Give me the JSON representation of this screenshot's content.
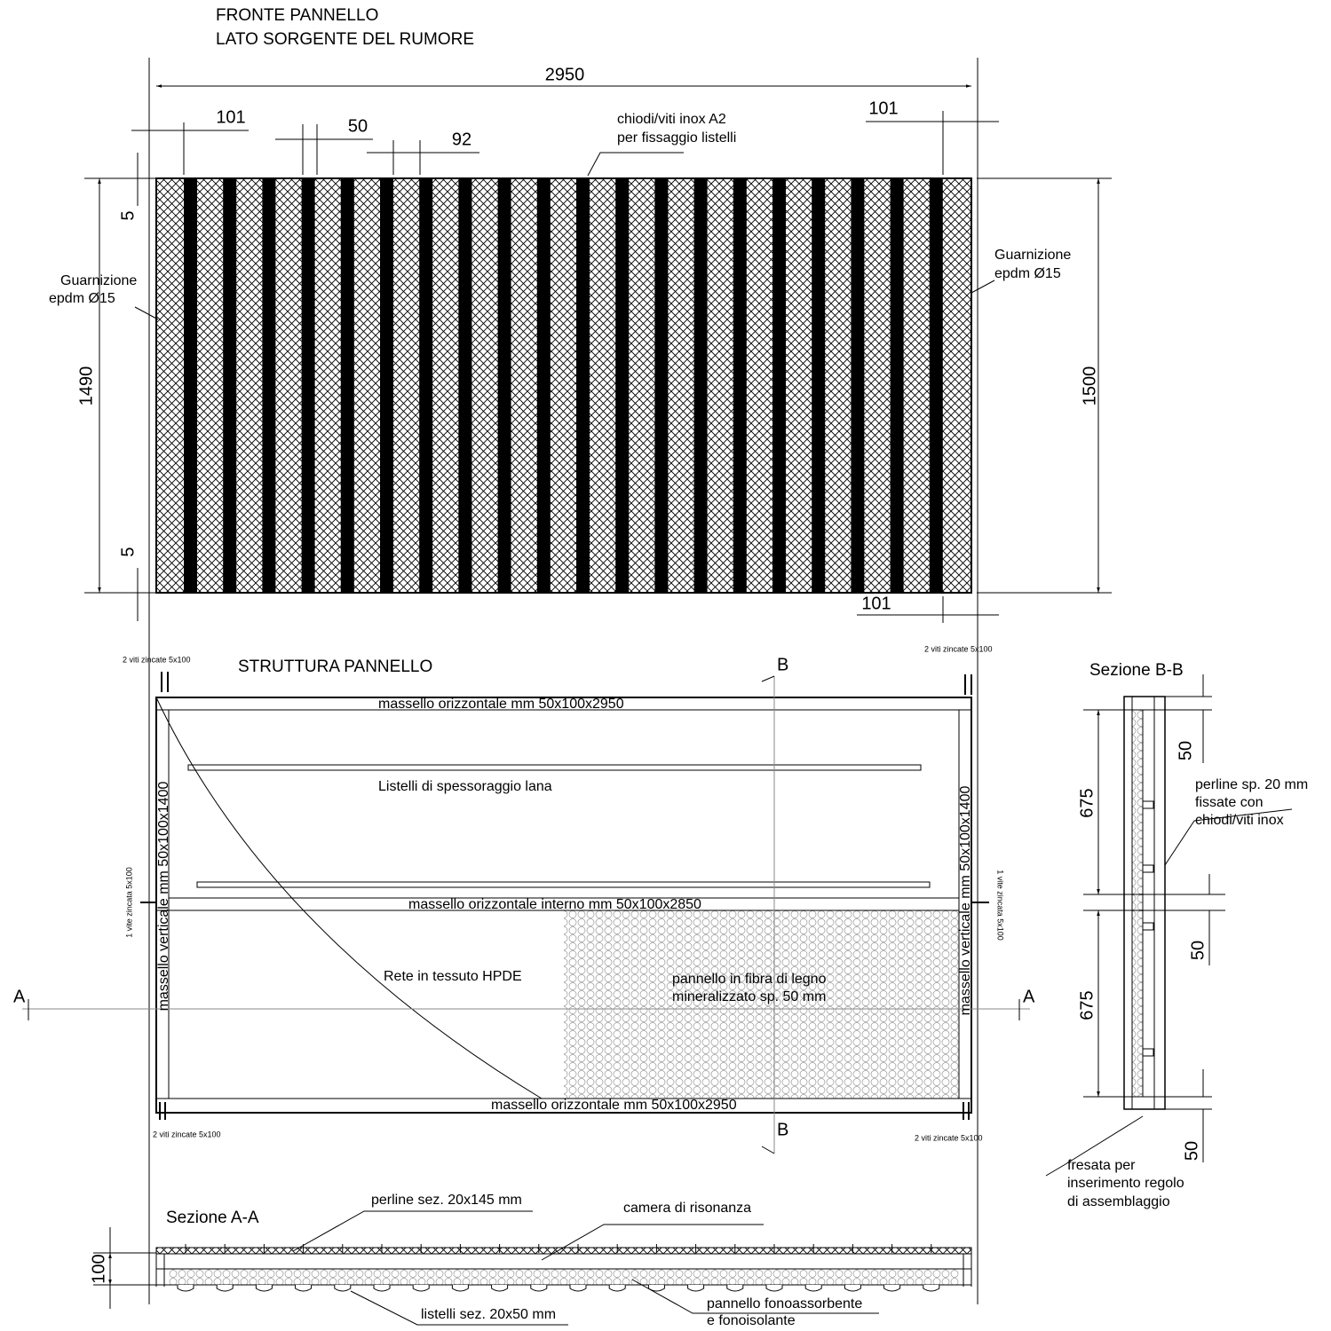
{
  "front": {
    "title": [
      "FRONTE PANNELLO",
      "LATO SORGENTE DEL RUMORE"
    ],
    "dim_width": "2950",
    "dim_left_edge": "101",
    "dim_slat": "50",
    "dim_gap": "92",
    "dim_right_edge": "101",
    "dim_bottom_right": "101",
    "dim_top_gap": "5",
    "dim_height": "1490",
    "dim_bottom_gap": "5",
    "dim_total_height": "1500",
    "fixing_note": [
      "chiodi/viti inox A2",
      "per fissaggio listelli"
    ],
    "gasket_left": [
      "Guarnizione",
      "epdm Ø15"
    ],
    "gasket_right": [
      "Guarnizione",
      "epdm Ø15"
    ]
  },
  "structure": {
    "title": "STRUTTURA PANNELLO",
    "screws": [
      "2 viti zincate 5x100",
      "2 viti zincate 5x100",
      "2 viti zincate 5x100",
      "2 viti zincate 5x100"
    ],
    "side_screws": [
      "1 vite zincata 5x100",
      "1 vite zincata 5x100"
    ],
    "top_beam": "massello orizzontale mm 50x100x2950",
    "bottom_beam": "massello orizzontale mm 50x100x2950",
    "inner_beam": "massello orizzontale interno mm 50x100x2850",
    "left_post": "massello verticale mm 50x100x1400",
    "right_post": "massello verticale mm 50x100x1400",
    "battens": "Listelli di spessoraggio lana",
    "mesh": "Rete in tessuto HPDE",
    "board": [
      "pannello in fibra di legno",
      "mineralizzato sp. 50 mm"
    ],
    "section_marks": [
      "A",
      "A",
      "B",
      "B"
    ]
  },
  "section_bb": {
    "title": "Sezione B-B",
    "dims": [
      "50",
      "675",
      "50",
      "675",
      "50"
    ],
    "boards_note": [
      "perline sp. 20 mm",
      "fissate con",
      "chiodi/viti inox"
    ],
    "groove_note": [
      "fresata per",
      "inserimento regolo",
      "di assemblaggio"
    ]
  },
  "section_aa": {
    "title": "Sezione A-A",
    "dim_depth": "100",
    "boards": "perline sez. 20x145 mm",
    "chamber": "camera di risonanza",
    "battens": "listelli sez. 20x50 mm",
    "panel": [
      "pannello fonoassorbente",
      "e fonoisolante"
    ]
  }
}
